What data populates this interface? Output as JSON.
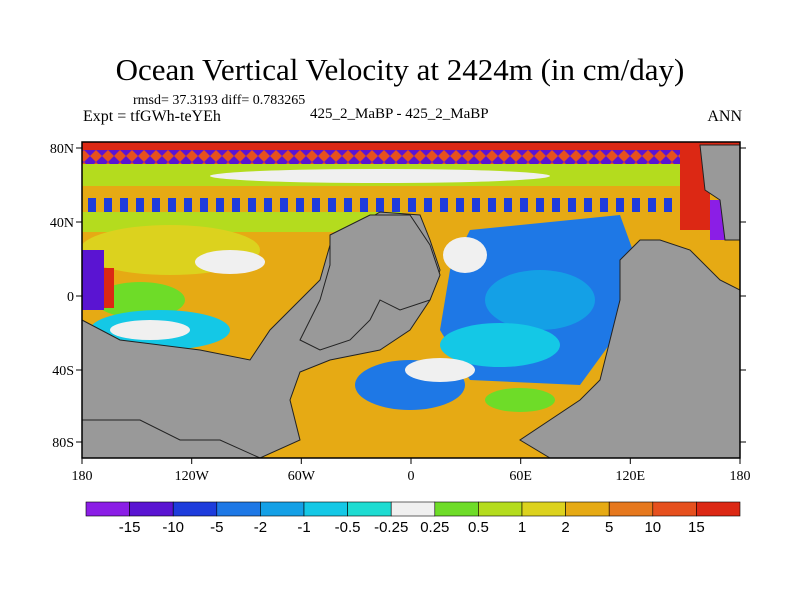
{
  "header": {
    "title": "Ocean Vertical Velocity at 2424m (in cm/day)",
    "stats": "rmsd= 37.3193 diff= 0.783265",
    "experiment": "Expt = tfGWh-teYEh",
    "center_label": "425_2_MaBP - 425_2_MaBP",
    "season": "ANN"
  },
  "axes": {
    "lat_labels": [
      "80N",
      "40N",
      "0",
      "40S",
      "80S"
    ],
    "lon_labels": [
      "180",
      "120W",
      "60W",
      "0",
      "60E",
      "120E",
      "180"
    ]
  },
  "colorbar": {
    "labels": [
      "-15",
      "-10",
      "-5",
      "-2",
      "-1",
      "-0.5",
      "-0.25",
      "0.25",
      "0.5",
      "1",
      "2",
      "5",
      "10",
      "15"
    ],
    "colors": [
      "#8b1ee6",
      "#5a14d2",
      "#1e3cdc",
      "#1e78e6",
      "#14a0e6",
      "#14c8e6",
      "#1edcd2",
      "#f0f0f0",
      "#6edc28",
      "#b4dc1e",
      "#dcd21e",
      "#e6aa14",
      "#e6781e",
      "#e6501e",
      "#dc2814"
    ]
  },
  "map": {
    "land_color": "#999999",
    "regions": [
      {
        "name": "north-band",
        "color": "#dc2814"
      },
      {
        "name": "subpolar",
        "color": "#b4dc1e"
      },
      {
        "name": "subtropical-gyre",
        "color": "#e6aa14"
      },
      {
        "name": "equatorial-pacific",
        "color": "#14c8e6"
      },
      {
        "name": "southern-ocean",
        "color": "#1e78e6"
      },
      {
        "name": "neutral-zone",
        "color": "#f0f0f0"
      }
    ]
  }
}
